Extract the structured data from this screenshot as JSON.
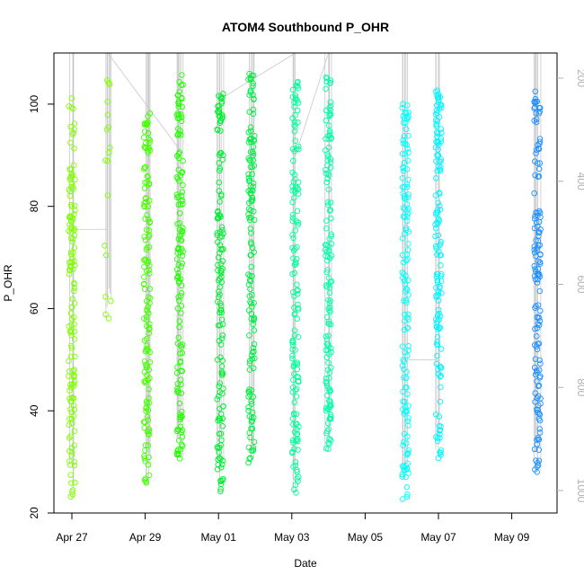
{
  "chart_data": {
    "type": "scatter",
    "title": "ATOM4 Southbound P_OHR",
    "xlabel": "Date",
    "ylabel": "P_OHR",
    "x_tick_labels": [
      "Apr 27",
      "Apr 29",
      "May 01",
      "May 03",
      "May 05",
      "May 07",
      "May 09"
    ],
    "x_tick_days": [
      0,
      2,
      4,
      6,
      8,
      10,
      12
    ],
    "y_ticks": [
      20,
      40,
      60,
      80,
      100
    ],
    "ylim": [
      20,
      110
    ],
    "right_axis_ticks": [
      200,
      400,
      600,
      800,
      1000
    ],
    "right_axis_range": [
      130,
      1000
    ],
    "grid": false,
    "colors": {
      "day0": "#7fff00",
      "day1": "#6fff00",
      "day2": "#44ff00",
      "day3": "#22ff00",
      "day4": "#00ee33",
      "day5": "#00ff55",
      "day6": "#00ff99",
      "day7": "#00ffbb",
      "day9": "#00ffff",
      "day10": "#00f5ff",
      "day12": "#1e90ff",
      "track": "#c8c8c8"
    },
    "series": [
      {
        "x": 0.0,
        "ymin": 22.5,
        "ymax": 101.5,
        "color": "#7fff00"
      },
      {
        "x": 0.98,
        "ymin": 56.5,
        "ymax": 105.0,
        "color": "#7fff00"
      },
      {
        "x": 2.05,
        "ymin": 25.5,
        "ymax": 99.0,
        "color": "#44ff00"
      },
      {
        "x": 2.95,
        "ymin": 30.5,
        "ymax": 106.0,
        "color": "#22ff00"
      },
      {
        "x": 4.05,
        "ymin": 24.0,
        "ymax": 104.5,
        "color": "#00ee33"
      },
      {
        "x": 4.9,
        "ymin": 29.5,
        "ymax": 106.0,
        "color": "#00ee44"
      },
      {
        "x": 6.1,
        "ymin": 23.0,
        "ymax": 106.0,
        "color": "#00ff99"
      },
      {
        "x": 7.0,
        "ymin": 32.5,
        "ymax": 106.0,
        "color": "#00ffaa"
      },
      {
        "x": 9.1,
        "ymin": 22.5,
        "ymax": 101.0,
        "color": "#00ffff"
      },
      {
        "x": 10.0,
        "ymin": 29.5,
        "ymax": 103.0,
        "color": "#00f5ff"
      },
      {
        "x": 12.7,
        "ymin": 27.5,
        "ymax": 102.5,
        "color": "#1e90ff"
      }
    ]
  }
}
